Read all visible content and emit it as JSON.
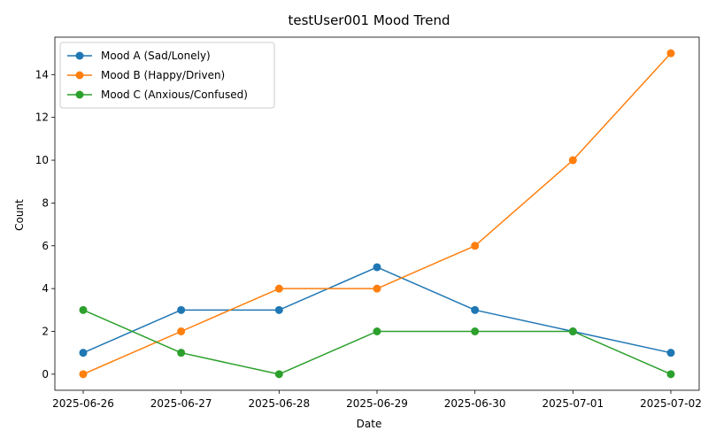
{
  "chart_data": {
    "type": "line",
    "title": "testUser001 Mood Trend",
    "xlabel": "Date",
    "ylabel": "Count",
    "x": [
      "2025-06-26",
      "2025-06-27",
      "2025-06-28",
      "2025-06-29",
      "2025-06-30",
      "2025-07-01",
      "2025-07-02"
    ],
    "ylim": [
      -0.75,
      15.75
    ],
    "yticks": [
      0,
      2,
      4,
      6,
      8,
      10,
      12,
      14
    ],
    "grid": false,
    "legend_position": "upper-left",
    "series": [
      {
        "name": "Mood A (Sad/Lonely)",
        "color": "#1f77b4",
        "values": [
          1,
          3,
          3,
          5,
          3,
          2,
          1
        ]
      },
      {
        "name": "Mood B (Happy/Driven)",
        "color": "#ff7f0e",
        "values": [
          0,
          2,
          4,
          4,
          6,
          10,
          15
        ]
      },
      {
        "name": "Mood C (Anxious/Confused)",
        "color": "#2ca02c",
        "values": [
          3,
          1,
          0,
          2,
          2,
          2,
          0
        ]
      }
    ]
  }
}
